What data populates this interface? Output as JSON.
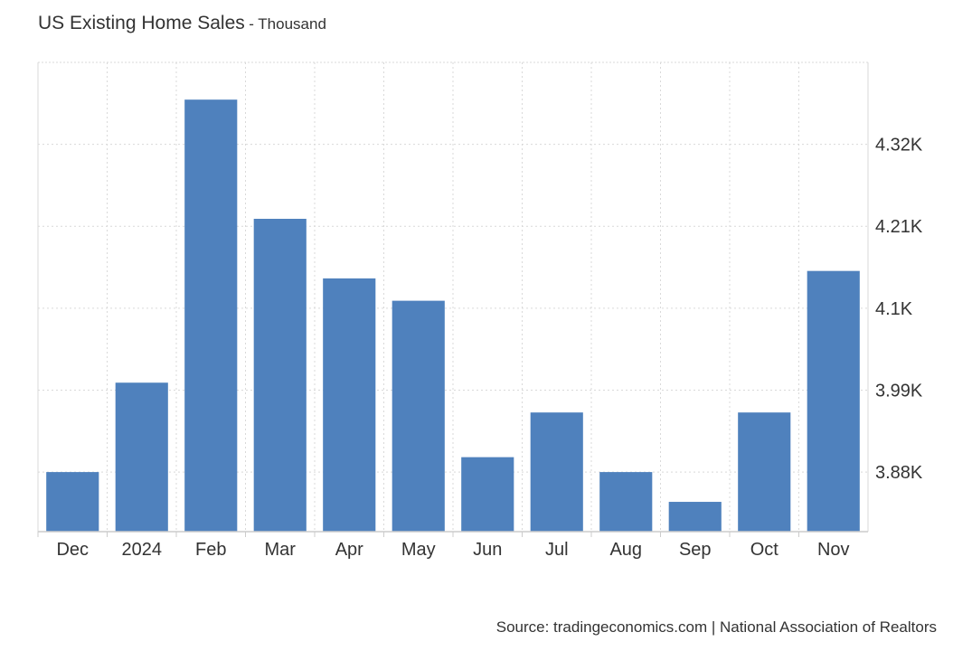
{
  "title": "US Existing Home Sales",
  "subtitle": "- Thousand",
  "source": "Source: tradingeconomics.com | National Association of Realtors",
  "colors": {
    "bar": "#4f81bd",
    "grid": "#d9d9d9",
    "axis": "#cccccc",
    "text": "#333333"
  },
  "chart_data": {
    "type": "bar",
    "title": "US Existing Home Sales",
    "subtitle": "- Thousand",
    "categories": [
      "Dec",
      "2024",
      "Feb",
      "Mar",
      "Apr",
      "May",
      "Jun",
      "Jul",
      "Aug",
      "Sep",
      "Oct",
      "Nov"
    ],
    "values": [
      3.88,
      4.0,
      4.38,
      4.22,
      4.14,
      4.11,
      3.9,
      3.96,
      3.88,
      3.84,
      3.96,
      4.15
    ],
    "y_ticks": [
      3.88,
      3.99,
      4.1,
      4.21,
      4.32
    ],
    "y_tick_labels": [
      "3.88K",
      "3.99K",
      "4.1K",
      "4.21K",
      "4.32K"
    ],
    "ylim": [
      3.8,
      4.43
    ],
    "y_axis_position": "right",
    "grid": true,
    "legend": "none"
  }
}
